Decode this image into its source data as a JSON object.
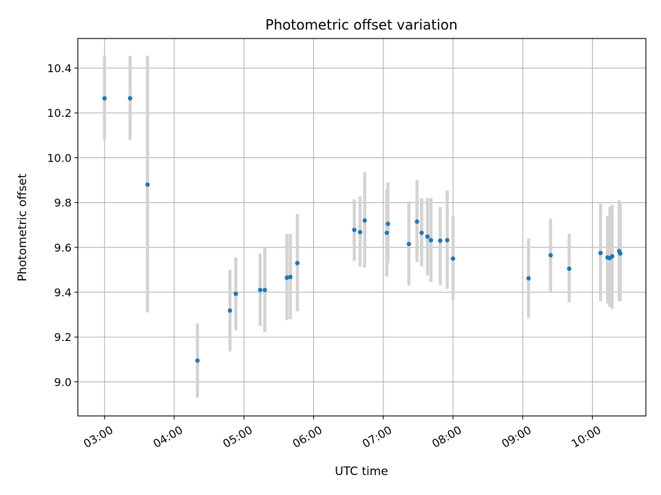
{
  "chart_data": {
    "type": "scatter",
    "title": "Photometric offset variation",
    "xlabel": "UTC time",
    "ylabel": "Photometric offset",
    "grid": true,
    "xlim": [
      "02:37",
      "10:46"
    ],
    "ylim": [
      8.848,
      10.532
    ],
    "xticks": [
      "03:00",
      "04:00",
      "05:00",
      "06:00",
      "07:00",
      "08:00",
      "09:00",
      "10:00"
    ],
    "yticks": [
      "9.0",
      "9.2",
      "9.4",
      "9.6",
      "9.8",
      "10.0",
      "10.2",
      "10.4"
    ],
    "colors": {
      "marker": "#1f77b4",
      "errorbar": "#d3d3d3",
      "grid": "#b0b0b0"
    },
    "points": [
      {
        "x": "03:00",
        "y": 10.265,
        "ylo": 10.08,
        "yhi": 10.455
      },
      {
        "x": "03:22",
        "y": 10.265,
        "ylo": 10.08,
        "yhi": 10.455
      },
      {
        "x": "03:37",
        "y": 9.88,
        "ylo": 9.31,
        "yhi": 10.455
      },
      {
        "x": "04:20",
        "y": 9.095,
        "ylo": 8.93,
        "yhi": 9.26
      },
      {
        "x": "04:48",
        "y": 9.318,
        "ylo": 9.135,
        "yhi": 9.5
      },
      {
        "x": "04:53",
        "y": 9.393,
        "ylo": 9.23,
        "yhi": 9.555
      },
      {
        "x": "05:14",
        "y": 9.41,
        "ylo": 9.25,
        "yhi": 9.572
      },
      {
        "x": "05:18",
        "y": 9.41,
        "ylo": 9.222,
        "yhi": 9.597
      },
      {
        "x": "05:37",
        "y": 9.465,
        "ylo": 9.275,
        "yhi": 9.66
      },
      {
        "x": "05:40",
        "y": 9.468,
        "ylo": 9.28,
        "yhi": 9.66
      },
      {
        "x": "05:46",
        "y": 9.53,
        "ylo": 9.315,
        "yhi": 9.75
      },
      {
        "x": "06:35",
        "y": 9.678,
        "ylo": 9.54,
        "yhi": 9.815
      },
      {
        "x": "06:40",
        "y": 9.668,
        "ylo": 9.515,
        "yhi": 9.828
      },
      {
        "x": "06:44",
        "y": 9.72,
        "ylo": 9.51,
        "yhi": 9.935
      },
      {
        "x": "07:03",
        "y": 9.665,
        "ylo": 9.47,
        "yhi": 9.86
      },
      {
        "x": "07:04",
        "y": 9.705,
        "ylo": 9.53,
        "yhi": 9.89
      },
      {
        "x": "07:22",
        "y": 9.615,
        "ylo": 9.43,
        "yhi": 9.805
      },
      {
        "x": "07:29",
        "y": 9.715,
        "ylo": 9.535,
        "yhi": 9.9
      },
      {
        "x": "07:33",
        "y": 9.665,
        "ylo": 9.515,
        "yhi": 9.82
      },
      {
        "x": "07:38",
        "y": 9.648,
        "ylo": 9.475,
        "yhi": 9.82
      },
      {
        "x": "07:41",
        "y": 9.632,
        "ylo": 9.445,
        "yhi": 9.82
      },
      {
        "x": "07:49",
        "y": 9.63,
        "ylo": 9.43,
        "yhi": 9.78
      },
      {
        "x": "07:55",
        "y": 9.632,
        "ylo": 9.415,
        "yhi": 9.855
      },
      {
        "x": "08:00",
        "y": 9.55,
        "ylo": 9.365,
        "yhi": 9.74
      },
      {
        "x": "09:05",
        "y": 9.462,
        "ylo": 9.285,
        "yhi": 9.64
      },
      {
        "x": "09:24",
        "y": 9.565,
        "ylo": 9.4,
        "yhi": 9.728
      },
      {
        "x": "09:40",
        "y": 9.505,
        "ylo": 9.355,
        "yhi": 9.66
      },
      {
        "x": "10:07",
        "y": 9.575,
        "ylo": 9.36,
        "yhi": 9.795
      },
      {
        "x": "10:13",
        "y": 9.555,
        "ylo": 9.35,
        "yhi": 9.74
      },
      {
        "x": "10:15",
        "y": 9.552,
        "ylo": 9.335,
        "yhi": 9.78
      },
      {
        "x": "10:17",
        "y": 9.56,
        "ylo": 9.325,
        "yhi": 9.79
      },
      {
        "x": "10:23",
        "y": 9.583,
        "ylo": 9.36,
        "yhi": 9.81
      },
      {
        "x": "10:24",
        "y": 9.573,
        "ylo": 9.36,
        "yhi": 9.8
      }
    ]
  }
}
